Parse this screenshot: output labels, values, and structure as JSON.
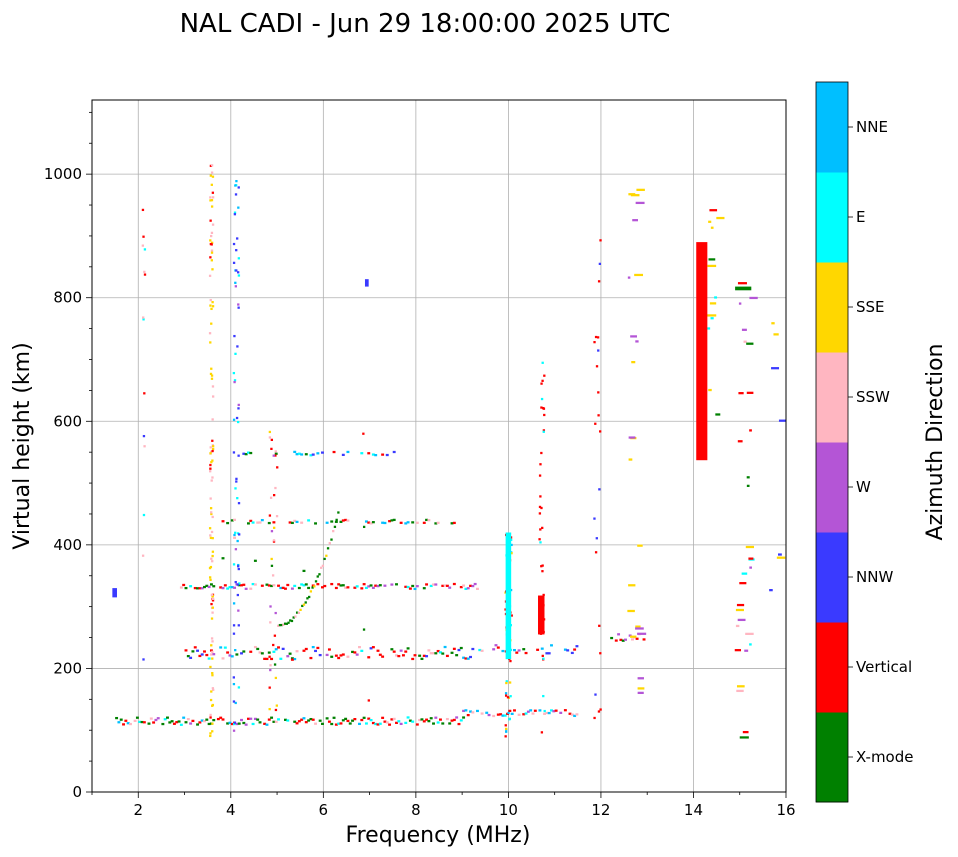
{
  "chart_data": {
    "type": "scatter",
    "title": "NAL CADI - Jun 29 18:00:00 2025 UTC",
    "xlabel": "Frequency (MHz)",
    "ylabel": "Virtual height (km)",
    "xlim": [
      1,
      16
    ],
    "ylim": [
      0,
      1120
    ],
    "xticks": [
      2,
      4,
      6,
      8,
      10,
      12,
      14,
      16
    ],
    "yticks": [
      0,
      200,
      400,
      600,
      800,
      1000
    ],
    "grid": true,
    "colorbar": {
      "label": "Azimuth Direction",
      "categories": [
        {
          "name": "X-mode",
          "color": "#008000"
        },
        {
          "name": "Vertical",
          "color": "#ff0000"
        },
        {
          "name": "NNW",
          "color": "#3a3aff"
        },
        {
          "name": "W",
          "color": "#b455d6"
        },
        {
          "name": "SSW",
          "color": "#ffb6c1"
        },
        {
          "name": "SSE",
          "color": "#ffd700"
        },
        {
          "name": "E",
          "color": "#00ffff"
        },
        {
          "name": "NNE",
          "color": "#00bfff"
        }
      ]
    },
    "bands": [
      {
        "x0": 1.5,
        "x1": 9.0,
        "y": 115,
        "ys": 6,
        "cats": [
          1,
          1,
          1,
          0,
          6,
          7,
          1,
          0,
          0,
          0,
          3,
          4
        ],
        "d": 0.9
      },
      {
        "x0": 9.0,
        "x1": 11.5,
        "y": 128,
        "ys": 5,
        "cats": [
          7,
          6,
          1,
          3,
          4,
          7,
          1
        ],
        "d": 0.65
      },
      {
        "x0": 3.0,
        "x1": 9.5,
        "y": 225,
        "ys": 10,
        "cats": [
          1,
          1,
          2,
          3,
          7,
          0,
          1,
          6,
          4,
          0
        ],
        "d": 0.75
      },
      {
        "x0": 9.5,
        "x1": 11.5,
        "y": 232,
        "ys": 8,
        "cats": [
          0,
          2,
          3,
          1,
          7
        ],
        "d": 0.35
      },
      {
        "x0": 2.9,
        "x1": 9.3,
        "y": 333,
        "ys": 4,
        "cats": [
          1,
          1,
          0,
          7,
          6,
          3,
          1,
          0,
          4
        ],
        "d": 0.72
      },
      {
        "x0": 3.8,
        "x1": 8.8,
        "y": 438,
        "ys": 3,
        "cats": [
          1,
          0,
          6,
          7,
          4,
          1,
          0
        ],
        "d": 0.62
      },
      {
        "x0": 4.2,
        "x1": 7.5,
        "y": 548,
        "ys": 3,
        "cats": [
          1,
          0,
          6,
          7,
          2
        ],
        "d": 0.35
      },
      {
        "x0": 3.5,
        "x1": 6.0,
        "y": 300,
        "ys": 120,
        "cats": [
          1,
          1,
          4,
          3,
          2,
          0
        ],
        "d": 0.1
      },
      {
        "x0": 12.2,
        "x1": 13.0,
        "y": 250,
        "ys": 6,
        "cats": [
          3,
          0,
          4,
          1
        ],
        "d": 0.5
      }
    ],
    "columns": [
      {
        "x": 3.56,
        "w": 0.07,
        "y0": 90,
        "y1": 1015,
        "cats": [
          5,
          4,
          4,
          5,
          1
        ],
        "d": 0.35
      },
      {
        "x": 4.1,
        "w": 0.12,
        "y0": 90,
        "y1": 1000,
        "cats": [
          2,
          6,
          7,
          2,
          3
        ],
        "d": 0.22
      },
      {
        "x": 4.9,
        "w": 0.18,
        "y0": 120,
        "y1": 590,
        "cats": [
          1,
          1,
          4,
          3,
          0,
          5
        ],
        "d": 0.22
      },
      {
        "x": 9.98,
        "w": 0.14,
        "y0": 90,
        "y1": 420,
        "cats": [
          1,
          6,
          7,
          5,
          1
        ],
        "d": 0.55
      },
      {
        "x": 10.7,
        "w": 0.12,
        "y0": 90,
        "y1": 700,
        "cats": [
          1,
          1,
          1,
          6
        ],
        "d": 0.18
      },
      {
        "x": 11.9,
        "w": 0.14,
        "y0": 120,
        "y1": 930,
        "cats": [
          1,
          1,
          1,
          2
        ],
        "d": 0.08
      },
      {
        "x": 12.68,
        "w": 0.25,
        "y0": 130,
        "y1": 990,
        "cats": [
          5,
          5,
          5,
          3
        ],
        "d": 0.08
      },
      {
        "x": 14.4,
        "w": 0.22,
        "y0": 540,
        "y1": 980,
        "cats": [
          5,
          1,
          0,
          6
        ],
        "d": 0.09
      },
      {
        "x": 15.05,
        "w": 0.32,
        "y0": 80,
        "y1": 830,
        "cats": [
          6,
          0,
          5,
          1,
          3,
          4
        ],
        "d": 0.12
      },
      {
        "x": 15.78,
        "w": 0.32,
        "y0": 240,
        "y1": 920,
        "cats": [
          5,
          5,
          5,
          2
        ],
        "d": 0.03
      },
      {
        "x": 2.1,
        "w": 0.06,
        "y0": 200,
        "y1": 1010,
        "cats": [
          1,
          4,
          2,
          3,
          6
        ],
        "d": 0.05
      },
      {
        "x": 6.9,
        "w": 0.12,
        "y0": 50,
        "y1": 830,
        "cats": [
          2,
          6,
          1,
          0
        ],
        "d": 0.015
      }
    ],
    "blocks": [
      {
        "x0": 14.06,
        "x1": 14.3,
        "y0": 537,
        "y1": 890,
        "cat": 1
      },
      {
        "x0": 10.64,
        "x1": 10.78,
        "y0": 255,
        "y1": 318,
        "cat": 1
      },
      {
        "x0": 9.94,
        "x1": 10.06,
        "y0": 215,
        "y1": 420,
        "cat": 6
      },
      {
        "x0": 1.44,
        "x1": 1.54,
        "y0": 315,
        "y1": 330,
        "cat": 2
      },
      {
        "x0": 6.9,
        "x1": 6.98,
        "y0": 818,
        "y1": 830,
        "cat": 2
      },
      {
        "x0": 14.9,
        "x1": 15.25,
        "y0": 812,
        "y1": 818,
        "cat": 0
      }
    ],
    "traces": [
      {
        "x0": 5.0,
        "y0": 270,
        "x1": 6.3,
        "y1": 450,
        "cats": [
          0,
          0,
          4,
          5
        ],
        "n": 36
      }
    ],
    "seed": 29
  }
}
